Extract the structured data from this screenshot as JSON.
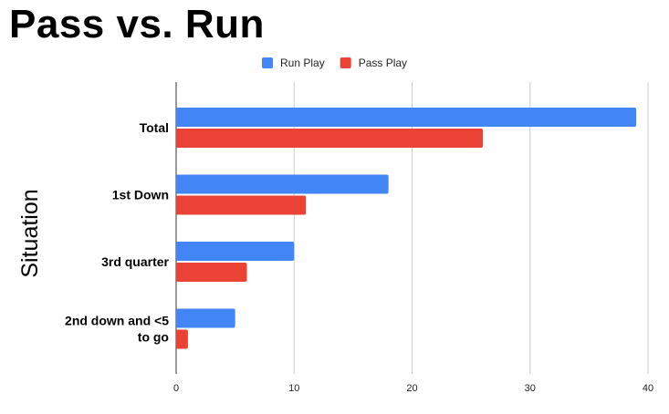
{
  "chart_data": {
    "type": "bar",
    "orientation": "horizontal",
    "title": "Pass vs. Run",
    "xlabel": "",
    "ylabel": "Situation",
    "categories": [
      "Total",
      "1st Down",
      "3rd quarter",
      "2nd down and <5 to go"
    ],
    "category_lines": [
      [
        "Total"
      ],
      [
        "1st Down"
      ],
      [
        "3rd quarter"
      ],
      [
        "2nd down and <5",
        "to go"
      ]
    ],
    "series": [
      {
        "name": "Run Play",
        "color": "#4285f4",
        "values": [
          39,
          18,
          10,
          5
        ]
      },
      {
        "name": "Pass Play",
        "color": "#ea4335",
        "values": [
          26,
          11,
          6,
          1
        ]
      }
    ],
    "xlim": [
      0,
      40
    ],
    "xticks": [
      "0",
      "10",
      "20",
      "30",
      "40"
    ],
    "grid": true,
    "legend": "top-center"
  }
}
